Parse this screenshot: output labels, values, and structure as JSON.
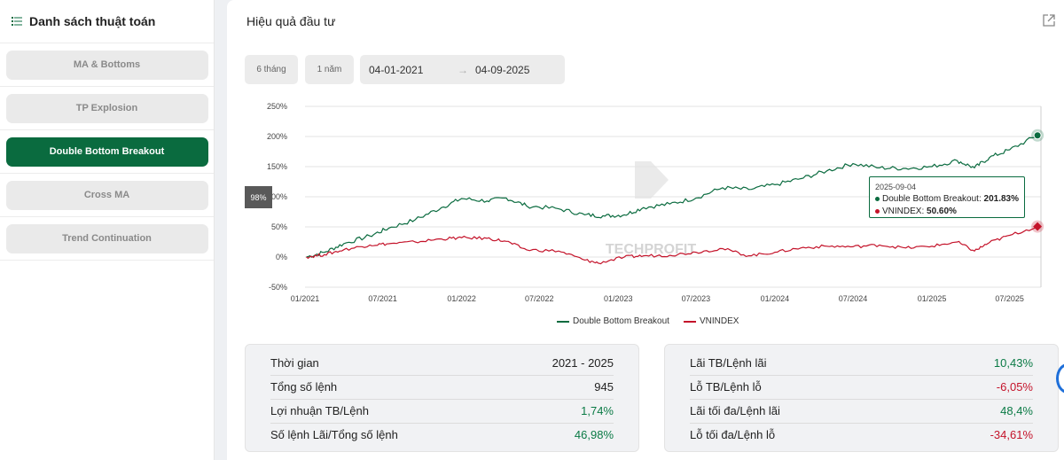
{
  "sidebar": {
    "title": "Danh sách thuật toán",
    "items": [
      {
        "label": "MA & Bottoms",
        "active": false
      },
      {
        "label": "TP Explosion",
        "active": false
      },
      {
        "label": "Double Bottom Breakout",
        "active": true
      },
      {
        "label": "Cross MA",
        "active": false
      },
      {
        "label": "Trend Continuation",
        "active": false
      }
    ]
  },
  "main": {
    "title": "Hiệu quả đầu tư",
    "periods": [
      "6 tháng",
      "1 năm"
    ],
    "date_from": "04-01-2021",
    "date_to": "04-09-2025",
    "date_arrow": "→"
  },
  "chart_data": {
    "type": "line",
    "watermark": "TECHPROFIT",
    "y_ticks": [
      "250%",
      "200%",
      "150%",
      "100%",
      "50%",
      "0%",
      "-50%"
    ],
    "ylim": [
      -50,
      250
    ],
    "x_ticks": [
      "01/2021",
      "07/2021",
      "01/2022",
      "07/2022",
      "01/2023",
      "07/2023",
      "01/2024",
      "07/2024",
      "01/2025",
      "07/2025"
    ],
    "hover_value_label": "98%",
    "series": [
      {
        "name": "Double Bottom Breakout",
        "color": "#0a6b3f",
        "points": [
          [
            "2021-01-04",
            0
          ],
          [
            "2021-02-15",
            8
          ],
          [
            "2021-04-01",
            22
          ],
          [
            "2021-06-01",
            35
          ],
          [
            "2021-07-15",
            48
          ],
          [
            "2021-09-15",
            62
          ],
          [
            "2021-11-15",
            82
          ],
          [
            "2022-01-01",
            97
          ],
          [
            "2022-03-01",
            93
          ],
          [
            "2022-04-15",
            98
          ],
          [
            "2022-06-01",
            85
          ],
          [
            "2022-08-15",
            80
          ],
          [
            "2022-10-15",
            70
          ],
          [
            "2022-12-01",
            68
          ],
          [
            "2023-01-15",
            70
          ],
          [
            "2023-03-01",
            82
          ],
          [
            "2023-05-01",
            88
          ],
          [
            "2023-07-01",
            98
          ],
          [
            "2023-09-01",
            115
          ],
          [
            "2023-11-01",
            112
          ],
          [
            "2024-01-01",
            120
          ],
          [
            "2024-03-01",
            130
          ],
          [
            "2024-05-01",
            143
          ],
          [
            "2024-07-01",
            155
          ],
          [
            "2024-09-01",
            148
          ],
          [
            "2024-11-01",
            147
          ],
          [
            "2025-01-01",
            150
          ],
          [
            "2025-03-01",
            160
          ],
          [
            "2025-04-10",
            148
          ],
          [
            "2025-05-15",
            165
          ],
          [
            "2025-07-01",
            178
          ],
          [
            "2025-09-04",
            201.83
          ]
        ]
      },
      {
        "name": "VNINDEX",
        "color": "#c4132a",
        "points": [
          [
            "2021-01-04",
            0
          ],
          [
            "2021-02-15",
            4
          ],
          [
            "2021-04-01",
            12
          ],
          [
            "2021-06-01",
            20
          ],
          [
            "2021-07-15",
            22
          ],
          [
            "2021-09-15",
            25
          ],
          [
            "2021-11-15",
            30
          ],
          [
            "2022-01-01",
            32
          ],
          [
            "2022-03-01",
            31
          ],
          [
            "2022-04-15",
            26
          ],
          [
            "2022-06-01",
            12
          ],
          [
            "2022-08-15",
            10
          ],
          [
            "2022-10-15",
            -5
          ],
          [
            "2022-11-15",
            -10
          ],
          [
            "2023-01-15",
            0
          ],
          [
            "2023-03-01",
            2
          ],
          [
            "2023-05-01",
            3
          ],
          [
            "2023-07-01",
            8
          ],
          [
            "2023-09-01",
            14
          ],
          [
            "2023-11-01",
            2
          ],
          [
            "2024-01-01",
            8
          ],
          [
            "2024-03-01",
            15
          ],
          [
            "2024-05-01",
            18
          ],
          [
            "2024-07-01",
            17
          ],
          [
            "2024-09-01",
            20
          ],
          [
            "2024-11-01",
            15
          ],
          [
            "2025-01-01",
            18
          ],
          [
            "2025-03-01",
            25
          ],
          [
            "2025-04-10",
            10
          ],
          [
            "2025-05-15",
            24
          ],
          [
            "2025-07-01",
            36
          ],
          [
            "2025-09-04",
            50.6
          ]
        ]
      }
    ],
    "tooltip": {
      "date": "2025-09-04",
      "rows": [
        {
          "name": "Double Bottom Breakout",
          "value": "201.83%",
          "color": "#0a6b3f"
        },
        {
          "name": "VNINDEX",
          "value": "50.60%",
          "color": "#c4132a"
        }
      ]
    },
    "legend_position": "bottom",
    "grid": true
  },
  "stats_left": [
    {
      "label": "Thời gian",
      "value": "2021 - 2025",
      "tone": "dark"
    },
    {
      "label": "Tổng số lệnh",
      "value": "945",
      "tone": "dark"
    },
    {
      "label": "Lợi nhuận TB/Lệnh",
      "value": "1,74%",
      "tone": "green"
    },
    {
      "label": "Số lệnh Lãi/Tổng số lệnh",
      "value": "46,98%",
      "tone": "green"
    }
  ],
  "stats_right": [
    {
      "label": "Lãi TB/Lệnh lãi",
      "value": "10,43%",
      "tone": "green"
    },
    {
      "label": "Lỗ TB/Lệnh lỗ",
      "value": "-6,05%",
      "tone": "red"
    },
    {
      "label": "Lãi tối đa/Lệnh lãi",
      "value": "48,4%",
      "tone": "green"
    },
    {
      "label": "Lỗ tối đa/Lệnh lỗ",
      "value": "-34,61%",
      "tone": "red"
    }
  ]
}
